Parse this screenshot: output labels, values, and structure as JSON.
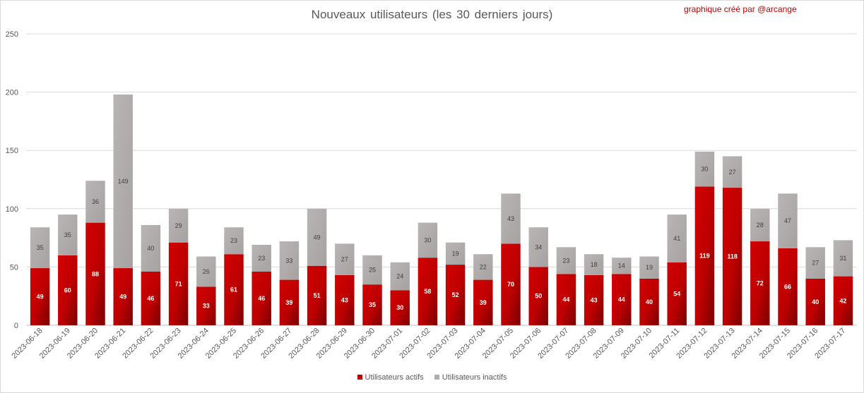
{
  "chart_data": {
    "type": "bar",
    "stacked": true,
    "title": "Nouveaux utilisateurs  (les 30 derniers  jours)",
    "annotation": "graphique créé par @arcange",
    "categories": [
      "2023-06-18",
      "2023-06-19",
      "2023-06-20",
      "2023-06-21",
      "2023-06-22",
      "2023-06-23",
      "2023-06-24",
      "2023-06-25",
      "2023-06-26",
      "2023-06-27",
      "2023-06-28",
      "2023-06-29",
      "2023-06-30",
      "2023-07-01",
      "2023-07-02",
      "2023-07-03",
      "2023-07-04",
      "2023-07-05",
      "2023-07-06",
      "2023-07-07",
      "2023-07-08",
      "2023-07-09",
      "2023-07-10",
      "2023-07-11",
      "2023-07-12",
      "2023-07-13",
      "2023-07-14",
      "2023-07-15",
      "2023-07-16",
      "2023-07-17"
    ],
    "series": [
      {
        "name": "Utilisateurs actifs",
        "color": "#c00000",
        "values": [
          49,
          60,
          88,
          49,
          46,
          71,
          33,
          61,
          46,
          39,
          51,
          43,
          35,
          30,
          58,
          52,
          39,
          70,
          50,
          44,
          43,
          44,
          40,
          54,
          119,
          118,
          72,
          66,
          40,
          42
        ]
      },
      {
        "name": "Utilisateurs inactifs",
        "color": "#b0acac",
        "values": [
          35,
          35,
          36,
          149,
          40,
          29,
          26,
          23,
          23,
          33,
          49,
          27,
          25,
          24,
          30,
          19,
          22,
          43,
          34,
          23,
          18,
          14,
          19,
          41,
          30,
          27,
          28,
          47,
          27,
          31
        ]
      }
    ],
    "ylim": [
      0,
      250
    ],
    "yticks": [
      "0",
      "50",
      "100",
      "150",
      "200",
      "250"
    ],
    "grid": true,
    "legend_position": "bottom"
  }
}
